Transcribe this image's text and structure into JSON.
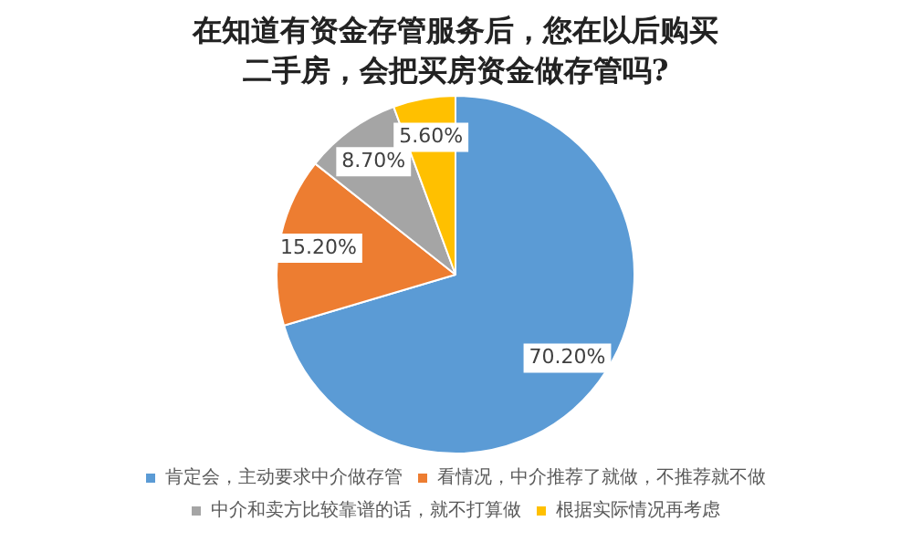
{
  "chart_data": {
    "type": "pie",
    "title": "在知道有资金存管服务后，您在以后购买二手房，会把买房资金做存管吗?",
    "categories": [
      "肯定会，主动要求中介做存管",
      "看情况，中介推荐了就做，不推荐就不做",
      "中介和卖方比较靠谱的话，就不打算做",
      "根据实际情况再考虑"
    ],
    "values": [
      70.2,
      15.2,
      8.7,
      5.6
    ],
    "colors": [
      "#5b9bd5",
      "#ed7d31",
      "#a5a5a5",
      "#ffc000"
    ],
    "value_labels": [
      "70.20%",
      "15.20%",
      "8.70%",
      "5.60%"
    ],
    "legend": "bottom"
  }
}
